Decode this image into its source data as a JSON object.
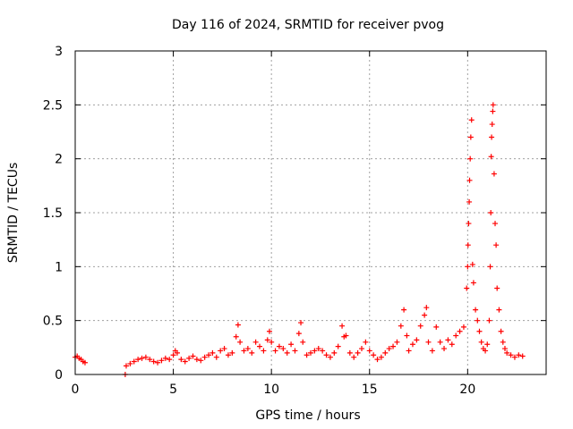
{
  "chart_data": {
    "type": "scatter",
    "title": "Day 116 of 2024, SRMTID for receiver pvog",
    "xlabel": "GPS time / hours",
    "ylabel": "SRMTID / TECUs",
    "xlim": [
      0,
      24
    ],
    "ylim": [
      0,
      3
    ],
    "xticks": [
      0,
      5,
      10,
      15,
      20
    ],
    "xtick_labels": [
      "0",
      "5",
      "10",
      "15",
      "20"
    ],
    "yticks": [
      0,
      0.5,
      1,
      1.5,
      2,
      2.5,
      3
    ],
    "ytick_labels": [
      "0",
      "0.5",
      "1",
      "1.5",
      "2",
      "2.5",
      "3"
    ],
    "grid": true,
    "marker": "+",
    "color": "#ff0000",
    "series": [
      {
        "name": "SRMTID",
        "x": [
          0.0,
          0.1,
          0.2,
          0.3,
          0.4,
          0.5,
          2.55,
          2.6,
          2.8,
          3.0,
          3.2,
          3.4,
          3.6,
          3.8,
          4.0,
          4.2,
          4.4,
          4.6,
          4.8,
          5.0,
          5.1,
          5.2,
          5.4,
          5.6,
          5.8,
          6.0,
          6.2,
          6.4,
          6.6,
          6.8,
          7.0,
          7.2,
          7.4,
          7.6,
          7.8,
          8.0,
          8.2,
          8.3,
          8.4,
          8.6,
          8.8,
          9.0,
          9.2,
          9.4,
          9.6,
          9.8,
          9.9,
          10.0,
          10.2,
          10.4,
          10.6,
          10.8,
          11.0,
          11.2,
          11.4,
          11.5,
          11.6,
          11.8,
          12.0,
          12.2,
          12.4,
          12.6,
          12.8,
          13.0,
          13.2,
          13.4,
          13.6,
          13.7,
          13.8,
          14.0,
          14.2,
          14.4,
          14.6,
          14.8,
          15.0,
          15.2,
          15.4,
          15.6,
          15.8,
          16.0,
          16.2,
          16.4,
          16.6,
          16.75,
          16.9,
          17.0,
          17.2,
          17.4,
          17.6,
          17.8,
          17.9,
          18.0,
          18.2,
          18.4,
          18.6,
          18.8,
          19.0,
          19.2,
          19.4,
          19.6,
          19.8,
          19.95,
          20.0,
          20.02,
          20.05,
          20.08,
          20.1,
          20.13,
          20.16,
          20.2,
          20.25,
          20.3,
          20.4,
          20.5,
          20.6,
          20.7,
          20.8,
          20.9,
          21.0,
          21.1,
          21.15,
          21.18,
          21.2,
          21.22,
          21.25,
          21.28,
          21.3,
          21.35,
          21.4,
          21.45,
          21.5,
          21.6,
          21.7,
          21.8,
          21.9,
          22.0,
          22.2,
          22.4,
          22.6,
          22.8
        ],
        "values": [
          0.16,
          0.17,
          0.15,
          0.14,
          0.12,
          0.11,
          0.0,
          0.08,
          0.1,
          0.12,
          0.14,
          0.15,
          0.16,
          0.14,
          0.12,
          0.11,
          0.13,
          0.15,
          0.14,
          0.18,
          0.22,
          0.2,
          0.14,
          0.12,
          0.15,
          0.17,
          0.14,
          0.13,
          0.16,
          0.18,
          0.2,
          0.16,
          0.22,
          0.24,
          0.18,
          0.2,
          0.35,
          0.46,
          0.3,
          0.22,
          0.24,
          0.2,
          0.3,
          0.26,
          0.22,
          0.32,
          0.4,
          0.3,
          0.22,
          0.26,
          0.24,
          0.2,
          0.28,
          0.22,
          0.38,
          0.48,
          0.3,
          0.18,
          0.2,
          0.22,
          0.24,
          0.22,
          0.18,
          0.16,
          0.2,
          0.26,
          0.45,
          0.35,
          0.36,
          0.2,
          0.16,
          0.2,
          0.24,
          0.3,
          0.22,
          0.18,
          0.14,
          0.16,
          0.2,
          0.24,
          0.26,
          0.3,
          0.45,
          0.6,
          0.36,
          0.22,
          0.28,
          0.32,
          0.45,
          0.55,
          0.62,
          0.3,
          0.22,
          0.44,
          0.3,
          0.24,
          0.32,
          0.28,
          0.36,
          0.4,
          0.44,
          0.8,
          1.0,
          1.2,
          1.4,
          1.6,
          1.8,
          2.0,
          2.2,
          2.36,
          1.02,
          0.85,
          0.6,
          0.5,
          0.4,
          0.3,
          0.24,
          0.22,
          0.28,
          0.5,
          1.0,
          1.5,
          2.02,
          2.2,
          2.32,
          2.44,
          2.5,
          1.86,
          1.4,
          1.2,
          0.8,
          0.6,
          0.4,
          0.3,
          0.24,
          0.2,
          0.18,
          0.16,
          0.18,
          0.17
        ]
      }
    ]
  }
}
